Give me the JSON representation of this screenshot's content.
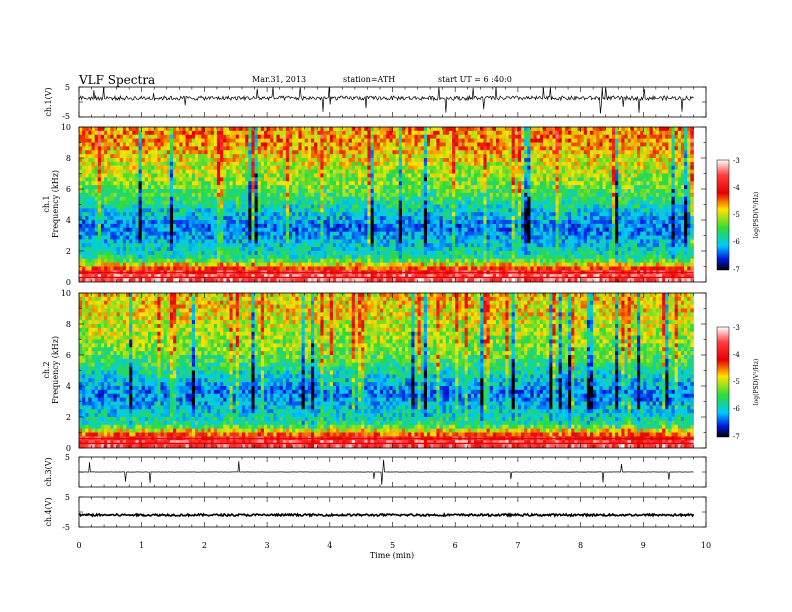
{
  "header": {
    "title": "VLF Spectra",
    "date": "Mar.31, 2013",
    "station": "station=ATH",
    "start": "start UT = 6 :40:0"
  },
  "axes": {
    "time_label": "Time (min)",
    "time_ticks": [
      "0",
      "1",
      "2",
      "3",
      "4",
      "5",
      "6",
      "7",
      "8",
      "9",
      "10"
    ],
    "ch1_label": "ch.1(V)",
    "ch3_label": "ch.3(V)",
    "ch4_label": "ch.4(V)",
    "spec1_label_a": "ch.1",
    "spec1_label_b": "Frequency (kHz)",
    "spec2_label_a": "ch.2",
    "spec2_label_b": "Frequency (kHz)",
    "freq_ticks": [
      "0",
      "2",
      "4",
      "6",
      "8",
      "10"
    ],
    "volt_top": "5",
    "volt_bottom": "-5"
  },
  "colorbar": {
    "label": "log(PSD(V²/Hz)",
    "ticks": [
      "-3",
      "-4",
      "-5",
      "-6",
      "-7"
    ]
  },
  "chart_data": [
    {
      "type": "line",
      "name": "ch.1 waveform",
      "xlim": [
        0,
        10
      ],
      "ylim": [
        -5,
        5
      ],
      "x_data_max": 9.8,
      "baseline": 1.3,
      "noise": 0.7
    },
    {
      "type": "heatmap",
      "name": "ch.1 spectrogram",
      "xlim": [
        0,
        10
      ],
      "ylim": [
        0,
        10
      ],
      "x_data_max": 9.8,
      "zlim": [
        -7,
        -3
      ],
      "typical_log_psd_by_freq": [
        {
          "f": 0.5,
          "z": -3.5
        },
        {
          "f": 1.5,
          "z": -5.6
        },
        {
          "f": 3.5,
          "z": -6.3
        },
        {
          "f": 6.0,
          "z": -5.3
        },
        {
          "f": 9.0,
          "z": -4.6
        }
      ]
    },
    {
      "type": "heatmap",
      "name": "ch.2 spectrogram",
      "xlim": [
        0,
        10
      ],
      "ylim": [
        0,
        10
      ],
      "x_data_max": 9.8,
      "zlim": [
        -7,
        -3
      ],
      "typical_log_psd_by_freq": [
        {
          "f": 0.5,
          "z": -3.6
        },
        {
          "f": 1.5,
          "z": -5.6
        },
        {
          "f": 3.5,
          "z": -6.3
        },
        {
          "f": 6.0,
          "z": -5.3
        },
        {
          "f": 9.0,
          "z": -4.8
        }
      ]
    },
    {
      "type": "line",
      "name": "ch.3 waveform",
      "xlim": [
        0,
        10
      ],
      "ylim": [
        -5,
        5
      ],
      "x_data_max": 9.8,
      "baseline": 0.0,
      "noise": 0.05
    },
    {
      "type": "line",
      "name": "ch.4 waveform",
      "xlim": [
        0,
        10
      ],
      "ylim": [
        -5,
        5
      ],
      "x_data_max": 9.8,
      "baseline": -1.0,
      "noise": 0.35
    }
  ]
}
